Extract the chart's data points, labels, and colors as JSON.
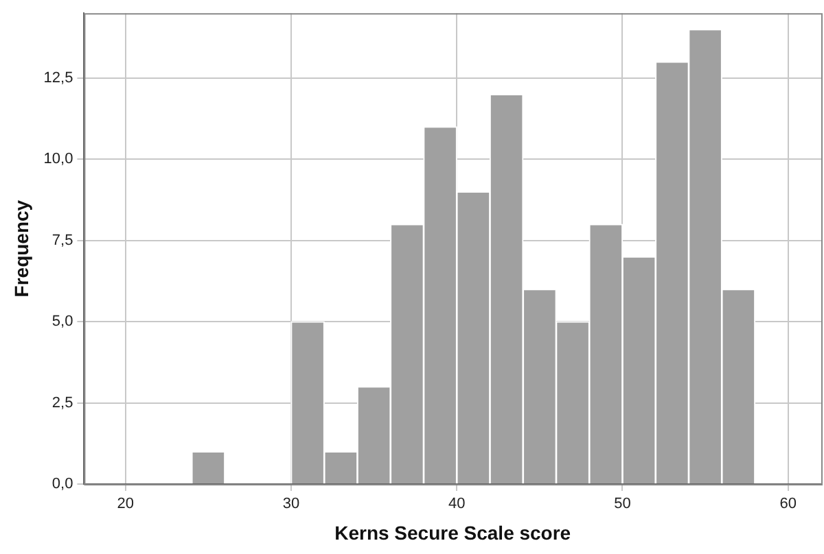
{
  "chart_data": {
    "type": "histogram",
    "xlabel": "Kerns Secure Scale score",
    "ylabel": "Frequency",
    "bins": [
      24,
      26,
      28,
      30,
      32,
      34,
      36,
      38,
      40,
      42,
      44,
      46,
      48,
      50,
      52,
      54,
      56,
      58
    ],
    "values": [
      1,
      0,
      0,
      5,
      1,
      3,
      8,
      11,
      9,
      12,
      6,
      5,
      8,
      7,
      13,
      14,
      6
    ],
    "color": "#a0a0a0",
    "xlim": [
      17.5,
      62
    ],
    "xticks": [
      20,
      30,
      40,
      50,
      60
    ],
    "ylim": [
      0,
      14.5
    ],
    "yticks": [
      {
        "value": 0,
        "label": "0,0"
      },
      {
        "value": 2.5,
        "label": "2,5"
      },
      {
        "value": 5,
        "label": "5,0"
      },
      {
        "value": 7.5,
        "label": "7,5"
      },
      {
        "value": 10,
        "label": "10,0"
      },
      {
        "value": 12.5,
        "label": "12,5"
      }
    ],
    "grid": true,
    "legend": false
  }
}
